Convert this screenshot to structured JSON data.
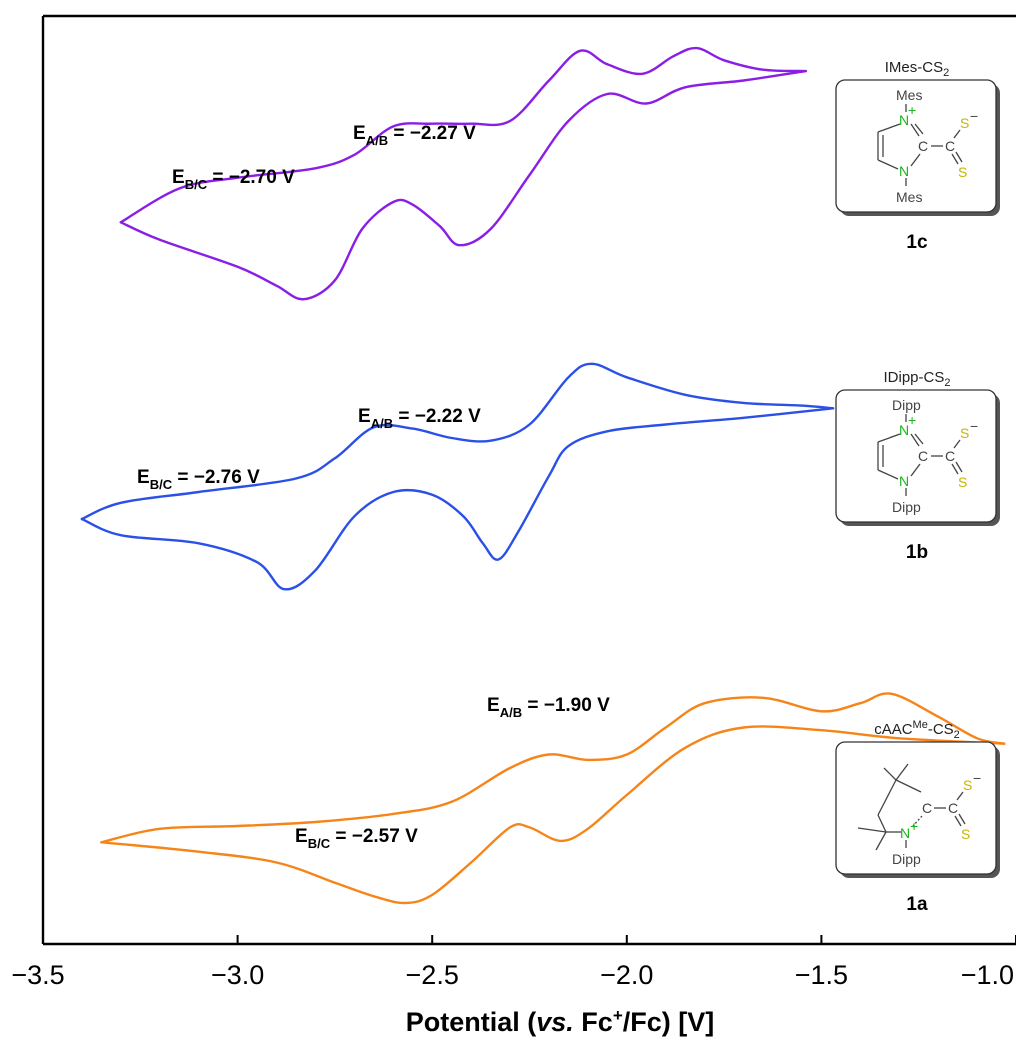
{
  "chart_data": {
    "type": "line",
    "xlabel": {
      "prefix": "Potential (",
      "italic": "vs.",
      "mid": " Fc",
      "sup": "+",
      "suffix": "/Fc) [V]"
    },
    "xlim": [
      -3.5,
      -1.0
    ],
    "xticks": [
      -3.5,
      -3.0,
      -2.5,
      -2.0,
      -1.5,
      -1.0
    ],
    "xtick_labels": [
      "−3.5",
      "−3.0",
      "−2.5",
      "−2.0",
      "−1.5",
      "−1.0"
    ],
    "y_axis": "no ticks (offset current traces, arbitrary units)",
    "grid": false,
    "series": [
      {
        "compound": "1c",
        "color": "#8a1ee6",
        "offset": 2.0,
        "upper_branch": [
          [
            -3.3,
            -0.15
          ],
          [
            -3.15,
            0.1
          ],
          [
            -3.0,
            0.18
          ],
          [
            -2.8,
            0.25
          ],
          [
            -2.7,
            0.35
          ],
          [
            -2.6,
            0.56
          ],
          [
            -2.5,
            0.58
          ],
          [
            -2.4,
            0.58
          ],
          [
            -2.3,
            0.6
          ],
          [
            -2.2,
            0.9
          ],
          [
            -2.12,
            1.12
          ],
          [
            -2.05,
            1.02
          ],
          [
            -1.96,
            0.95
          ],
          [
            -1.88,
            1.08
          ],
          [
            -1.82,
            1.14
          ],
          [
            -1.75,
            1.05
          ],
          [
            -1.65,
            0.98
          ],
          [
            -1.54,
            0.97
          ]
        ],
        "lower_branch": [
          [
            -3.3,
            -0.15
          ],
          [
            -3.2,
            -0.28
          ],
          [
            -3.0,
            -0.48
          ],
          [
            -2.9,
            -0.62
          ],
          [
            -2.83,
            -0.72
          ],
          [
            -2.75,
            -0.58
          ],
          [
            -2.68,
            -0.2
          ],
          [
            -2.6,
            0.0
          ],
          [
            -2.55,
            -0.02
          ],
          [
            -2.48,
            -0.18
          ],
          [
            -2.43,
            -0.32
          ],
          [
            -2.35,
            -0.2
          ],
          [
            -2.25,
            0.2
          ],
          [
            -2.15,
            0.6
          ],
          [
            -2.05,
            0.8
          ],
          [
            -1.95,
            0.73
          ],
          [
            -1.85,
            0.85
          ],
          [
            -1.7,
            0.9
          ],
          [
            -1.54,
            0.97
          ]
        ],
        "annotations": [
          {
            "main": "E",
            "sub": "B/C",
            "text": " = −2.70 V"
          },
          {
            "main": "E",
            "sub": "A/B",
            "text": " = −2.27 V"
          }
        ]
      },
      {
        "compound": "1b",
        "color": "#2a50e8",
        "offset": 1.0,
        "upper_branch": [
          [
            -3.4,
            -0.2
          ],
          [
            -3.3,
            -0.08
          ],
          [
            -3.1,
            0.0
          ],
          [
            -2.85,
            0.1
          ],
          [
            -2.75,
            0.25
          ],
          [
            -2.65,
            0.48
          ],
          [
            -2.55,
            0.47
          ],
          [
            -2.45,
            0.4
          ],
          [
            -2.35,
            0.38
          ],
          [
            -2.25,
            0.5
          ],
          [
            -2.15,
            0.85
          ],
          [
            -2.09,
            0.95
          ],
          [
            -2.0,
            0.85
          ],
          [
            -1.85,
            0.72
          ],
          [
            -1.7,
            0.66
          ],
          [
            -1.55,
            0.64
          ],
          [
            -1.47,
            0.62
          ]
        ],
        "lower_branch": [
          [
            -3.4,
            -0.2
          ],
          [
            -3.3,
            -0.32
          ],
          [
            -3.1,
            -0.38
          ],
          [
            -2.95,
            -0.52
          ],
          [
            -2.88,
            -0.72
          ],
          [
            -2.8,
            -0.58
          ],
          [
            -2.7,
            -0.18
          ],
          [
            -2.6,
            0.0
          ],
          [
            -2.5,
            -0.02
          ],
          [
            -2.42,
            -0.18
          ],
          [
            -2.37,
            -0.38
          ],
          [
            -2.33,
            -0.5
          ],
          [
            -2.28,
            -0.3
          ],
          [
            -2.2,
            0.12
          ],
          [
            -2.15,
            0.34
          ],
          [
            -2.05,
            0.45
          ],
          [
            -1.9,
            0.5
          ],
          [
            -1.7,
            0.55
          ],
          [
            -1.47,
            0.62
          ]
        ],
        "annotations": [
          {
            "main": "E",
            "sub": "B/C",
            "text": " = −2.76 V"
          },
          {
            "main": "E",
            "sub": "A/B",
            "text": " = −2.22 V"
          }
        ]
      },
      {
        "compound": "1a",
        "color": "#f58518",
        "offset": 0.0,
        "upper_branch": [
          [
            -3.35,
            -0.15
          ],
          [
            -3.2,
            -0.05
          ],
          [
            -3.0,
            -0.03
          ],
          [
            -2.8,
            0.0
          ],
          [
            -2.6,
            0.06
          ],
          [
            -2.45,
            0.15
          ],
          [
            -2.3,
            0.4
          ],
          [
            -2.2,
            0.5
          ],
          [
            -2.1,
            0.46
          ],
          [
            -2.0,
            0.5
          ],
          [
            -1.9,
            0.7
          ],
          [
            -1.8,
            0.88
          ],
          [
            -1.65,
            0.92
          ],
          [
            -1.5,
            0.82
          ],
          [
            -1.4,
            0.88
          ],
          [
            -1.32,
            0.95
          ],
          [
            -1.2,
            0.78
          ],
          [
            -1.1,
            0.62
          ],
          [
            -1.03,
            0.58
          ]
        ],
        "lower_branch": [
          [
            -3.35,
            -0.15
          ],
          [
            -3.1,
            -0.22
          ],
          [
            -2.9,
            -0.3
          ],
          [
            -2.75,
            -0.45
          ],
          [
            -2.65,
            -0.55
          ],
          [
            -2.57,
            -0.6
          ],
          [
            -2.5,
            -0.54
          ],
          [
            -2.4,
            -0.3
          ],
          [
            -2.3,
            -0.04
          ],
          [
            -2.25,
            -0.04
          ],
          [
            -2.17,
            -0.14
          ],
          [
            -2.1,
            -0.05
          ],
          [
            -2.0,
            0.2
          ],
          [
            -1.85,
            0.55
          ],
          [
            -1.7,
            0.7
          ],
          [
            -1.5,
            0.68
          ],
          [
            -1.3,
            0.62
          ],
          [
            -1.03,
            0.58
          ]
        ],
        "annotations": [
          {
            "main": "E",
            "sub": "B/C",
            "text": " = −2.57 V"
          },
          {
            "main": "E",
            "sub": "A/B",
            "text": " = −1.90 V"
          }
        ]
      }
    ]
  },
  "panels": [
    {
      "id": "1c",
      "title_main": "IMes-CS",
      "title_sub": "2",
      "title_sup": "",
      "title_tail": "",
      "substituent_top": "Mes",
      "substituent_bottom": "Mes",
      "n_top": "N",
      "n_top_charge": "+",
      "n_bottom": "N",
      "carbene_c": "C",
      "cs2_c": "C",
      "s_top": "S",
      "s_top_charge": "−",
      "s_bottom": "S"
    },
    {
      "id": "1b",
      "title_main": "IDipp-CS",
      "title_sub": "2",
      "title_sup": "",
      "title_tail": "",
      "substituent_top": "Dipp",
      "substituent_bottom": "Dipp",
      "n_top": "N",
      "n_top_charge": "+",
      "n_bottom": "N",
      "carbene_c": "C",
      "cs2_c": "C",
      "s_top": "S",
      "s_top_charge": "−",
      "s_bottom": "S"
    },
    {
      "id": "1a",
      "title_main": "cAAC",
      "title_sub": "2",
      "title_sup": "Me",
      "title_tail": "-CS",
      "substituent_bottom": "Dipp",
      "n_atom": "N",
      "n_charge": "+",
      "carbene_c": "C",
      "cs2_c": "C",
      "s_top": "S",
      "s_top_charge": "−",
      "s_bottom": "S"
    }
  ],
  "colors": {
    "nitrogen": "#19b419",
    "sulfur": "#c8b400",
    "carbon": "#444444"
  }
}
